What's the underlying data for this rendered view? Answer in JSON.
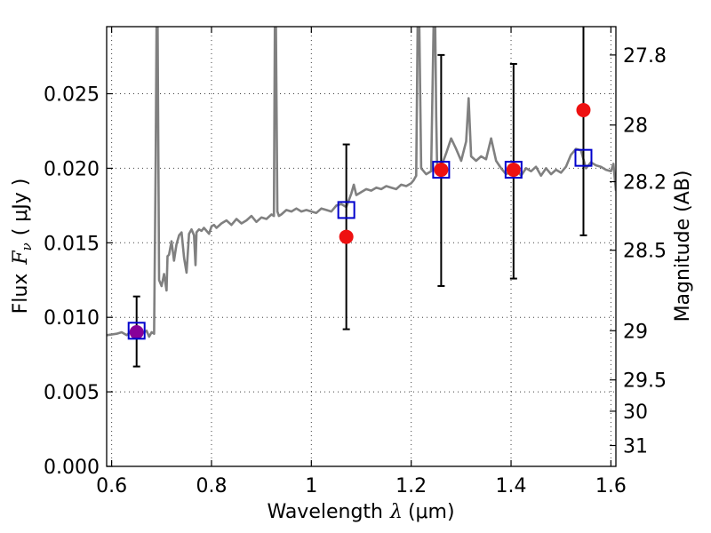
{
  "chart_data": {
    "type": "line",
    "xlabel_pre": "Wavelength",
    "xlabel_sym": "λ",
    "xlabel_unit": "(μm)",
    "ylabel_pre": "Flux",
    "ylabel_sym": "F",
    "ylabel_sub": "ν",
    "ylabel_unit": "( μJy )",
    "y2label": "Magnitude (AB)",
    "xlim": [
      0.59,
      1.61
    ],
    "ylim": [
      0.0,
      0.0295
    ],
    "grid": true,
    "x_ticks": [
      0.6,
      0.8,
      1.0,
      1.2,
      1.4,
      1.6
    ],
    "x_tick_labels": [
      "0.6",
      "0.8",
      "1",
      "1.2",
      "1.4",
      "1.6"
    ],
    "y_ticks": [
      0.0,
      0.005,
      0.01,
      0.015,
      0.02,
      0.025
    ],
    "y_tick_labels": [
      "0.000",
      "0.005",
      "0.010",
      "0.015",
      "0.020",
      "0.025"
    ],
    "y2_ticks": [
      {
        "label": "27.8",
        "flux": 0.0276
      },
      {
        "label": "28",
        "flux": 0.0229
      },
      {
        "label": "28.2",
        "flux": 0.0191
      },
      {
        "label": "28.5",
        "flux": 0.0145
      },
      {
        "label": "29",
        "flux": 0.0091
      },
      {
        "label": "29.5",
        "flux": 0.0058
      },
      {
        "label": "30",
        "flux": 0.0037
      },
      {
        "label": "31",
        "flux": 0.0014
      }
    ],
    "series": [
      {
        "kind": "model_spectrum",
        "color": "#808080",
        "x": [
          0.59,
          0.61,
          0.62,
          0.63,
          0.64,
          0.65,
          0.66,
          0.67,
          0.675,
          0.68,
          0.685,
          0.688,
          0.69,
          0.692,
          0.695,
          0.7,
          0.705,
          0.71,
          0.712,
          0.715,
          0.72,
          0.725,
          0.73,
          0.735,
          0.74,
          0.745,
          0.75,
          0.755,
          0.76,
          0.765,
          0.768,
          0.77,
          0.775,
          0.78,
          0.785,
          0.79,
          0.795,
          0.8,
          0.805,
          0.81,
          0.82,
          0.83,
          0.84,
          0.85,
          0.86,
          0.87,
          0.88,
          0.89,
          0.9,
          0.91,
          0.92,
          0.925,
          0.927,
          0.929,
          0.932,
          0.935,
          0.94,
          0.95,
          0.96,
          0.97,
          0.98,
          0.99,
          1.0,
          1.01,
          1.02,
          1.03,
          1.04,
          1.05,
          1.06,
          1.07,
          1.08,
          1.085,
          1.09,
          1.1,
          1.11,
          1.12,
          1.13,
          1.14,
          1.15,
          1.16,
          1.17,
          1.18,
          1.19,
          1.2,
          1.205,
          1.21,
          1.213,
          1.216,
          1.22,
          1.23,
          1.24,
          1.245,
          1.248,
          1.25,
          1.252,
          1.26,
          1.27,
          1.28,
          1.29,
          1.3,
          1.31,
          1.315,
          1.32,
          1.33,
          1.34,
          1.35,
          1.36,
          1.37,
          1.38,
          1.39,
          1.4,
          1.41,
          1.42,
          1.43,
          1.44,
          1.45,
          1.46,
          1.47,
          1.48,
          1.49,
          1.5,
          1.51,
          1.52,
          1.53,
          1.54,
          1.55,
          1.56,
          1.57,
          1.58,
          1.59,
          1.6,
          1.605,
          1.61
        ],
        "y": [
          0.0088,
          0.0089,
          0.009,
          0.0088,
          0.0091,
          0.009,
          0.0089,
          0.0091,
          0.0087,
          0.009,
          0.0089,
          0.02,
          0.03,
          0.03,
          0.0125,
          0.0121,
          0.0129,
          0.0118,
          0.0141,
          0.0142,
          0.0151,
          0.0138,
          0.0149,
          0.0155,
          0.0157,
          0.014,
          0.013,
          0.0156,
          0.0159,
          0.0155,
          0.0135,
          0.0157,
          0.0159,
          0.0158,
          0.016,
          0.0158,
          0.0156,
          0.0161,
          0.0162,
          0.016,
          0.0163,
          0.0165,
          0.0162,
          0.0166,
          0.0163,
          0.0165,
          0.0168,
          0.0164,
          0.0167,
          0.0166,
          0.0169,
          0.0168,
          0.03,
          0.03,
          0.0171,
          0.0168,
          0.0169,
          0.0172,
          0.0171,
          0.0173,
          0.0171,
          0.0172,
          0.0171,
          0.017,
          0.0173,
          0.0172,
          0.0171,
          0.0175,
          0.0176,
          0.0174,
          0.0183,
          0.0189,
          0.0182,
          0.0184,
          0.0186,
          0.0185,
          0.0187,
          0.0186,
          0.0188,
          0.0187,
          0.0186,
          0.0189,
          0.0188,
          0.019,
          0.0192,
          0.0195,
          0.03,
          0.03,
          0.02,
          0.0196,
          0.0198,
          0.03,
          0.03,
          0.0235,
          0.0199,
          0.0201,
          0.021,
          0.022,
          0.0213,
          0.0205,
          0.0218,
          0.0247,
          0.0208,
          0.0205,
          0.0208,
          0.0206,
          0.022,
          0.0205,
          0.02,
          0.0196,
          0.0198,
          0.02,
          0.0195,
          0.02,
          0.0198,
          0.0201,
          0.0195,
          0.02,
          0.0196,
          0.0199,
          0.0197,
          0.0201,
          0.0209,
          0.0213,
          0.0212,
          0.02,
          0.0204,
          0.0202,
          0.0201,
          0.0199,
          0.0198,
          0.0203,
          0.0185
        ]
      },
      {
        "kind": "model_photometry",
        "color": "#0000cc",
        "marker": "open-square",
        "points": [
          {
            "x": 0.65,
            "y": 0.0091
          },
          {
            "x": 1.07,
            "y": 0.0172
          },
          {
            "x": 1.26,
            "y": 0.0199
          },
          {
            "x": 1.405,
            "y": 0.0199
          },
          {
            "x": 1.545,
            "y": 0.0207
          }
        ]
      },
      {
        "kind": "observed_photometry",
        "marker": "filled-circle",
        "points": [
          {
            "x": 0.65,
            "y": 0.009,
            "err_lo": 0.0067,
            "err_hi": 0.0114,
            "color": "#880099"
          },
          {
            "x": 1.07,
            "y": 0.0154,
            "err_lo": 0.0092,
            "err_hi": 0.0216,
            "color": "#ee1111"
          },
          {
            "x": 1.26,
            "y": 0.0199,
            "err_lo": 0.0121,
            "err_hi": 0.0276,
            "color": "#ee1111"
          },
          {
            "x": 1.405,
            "y": 0.0199,
            "err_lo": 0.0126,
            "err_hi": 0.027,
            "color": "#ee1111"
          },
          {
            "x": 1.545,
            "y": 0.0239,
            "err_lo": 0.0155,
            "err_hi": 0.03,
            "color": "#ee1111"
          }
        ]
      }
    ]
  }
}
